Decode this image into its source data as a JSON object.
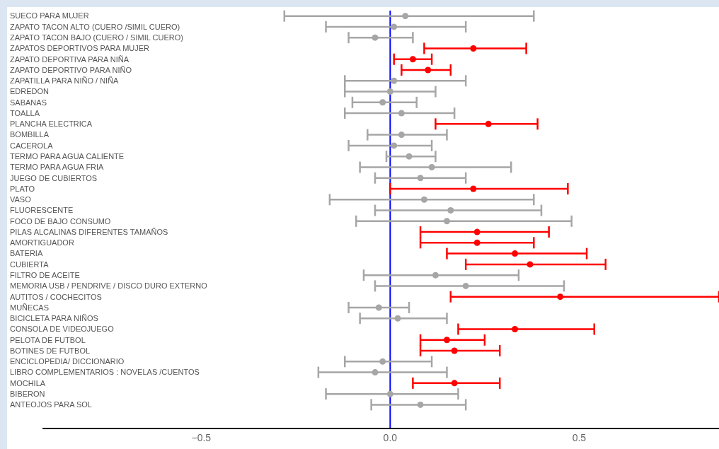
{
  "chart_data": {
    "type": "scatter",
    "orientation": "horizontal",
    "marker": "circle",
    "grid": false,
    "legend": false,
    "categories": [
      "SUECO PARA MUJER",
      "ZAPATO TACON ALTO (CUERO /SIMIL CUERO)",
      "ZAPATO TACON BAJO (CUERO / SIMIL CUERO)",
      "ZAPATOS DEPORTIVOS PARA MUJER",
      "ZAPATO DEPORTIVA PARA NIÑA",
      "ZAPATO DEPORTIVO PARA NIÑO",
      "ZAPATILLA PARA NIÑO / NIÑA",
      "EDREDON",
      "SABANAS",
      "TOALLA",
      "PLANCHA ELECTRICA",
      "BOMBILLA",
      "CACEROLA",
      "TERMO PARA AGUA CALIENTE",
      "TERMO PARA AGUA FRIA",
      "JUEGO DE CUBIERTOS",
      "PLATO",
      "VASO",
      "FLUORESCENTE",
      "FOCO DE BAJO CONSUMO",
      "PILAS ALCALINAS DIFERENTES TAMAÑOS",
      "AMORTIGUADOR",
      "BATERIA",
      "CUBIERTA",
      "FILTRO DE ACEITE",
      "MEMORIA USB / PENDRIVE / DISCO DURO EXTERNO",
      "AUTITOS / COCHECITOS",
      "MUÑECAS",
      "BICICLETA PARA NIÑOS",
      "CONSOLA DE VIDEOJUEGO",
      "PELOTA DE FUTBOL",
      "BOTINES DE FUTBOL",
      "ENCICLOPEDIA/ DICCIONARIO",
      "LIBRO COMPLEMENTARIOS : NOVELAS /CUENTOS",
      "MOCHILA",
      "BIBERON",
      "ANTEOJOS PARA SOL"
    ],
    "series": [
      {
        "color": "#a6a6a6",
        "values": [
          0.04,
          0.01,
          -0.04,
          null,
          null,
          null,
          0.01,
          0.0,
          -0.02,
          0.03,
          null,
          0.03,
          0.01,
          0.05,
          0.11,
          0.08,
          null,
          0.09,
          0.16,
          0.15,
          null,
          null,
          null,
          null,
          0.12,
          0.2,
          null,
          -0.03,
          0.02,
          null,
          null,
          null,
          -0.02,
          -0.04,
          null,
          0.0,
          0.08
        ],
        "errors": [
          [
            -0.28,
            0.38
          ],
          [
            -0.17,
            0.2
          ],
          [
            -0.11,
            0.06
          ],
          null,
          null,
          null,
          [
            -0.12,
            0.2
          ],
          [
            -0.12,
            0.12
          ],
          [
            -0.1,
            0.07
          ],
          [
            -0.12,
            0.17
          ],
          null,
          [
            -0.06,
            0.15
          ],
          [
            -0.11,
            0.11
          ],
          [
            -0.01,
            0.12
          ],
          [
            -0.08,
            0.32
          ],
          [
            -0.04,
            0.2
          ],
          null,
          [
            -0.16,
            0.38
          ],
          [
            -0.04,
            0.4
          ],
          [
            -0.09,
            0.48
          ],
          null,
          null,
          null,
          null,
          [
            -0.07,
            0.34
          ],
          [
            -0.04,
            0.46
          ],
          null,
          [
            -0.11,
            0.05
          ],
          [
            -0.08,
            0.15
          ],
          null,
          null,
          null,
          [
            -0.12,
            0.11
          ],
          [
            -0.19,
            0.15
          ],
          null,
          [
            -0.17,
            0.18
          ],
          [
            -0.05,
            0.2
          ]
        ]
      },
      {
        "color": "#ff0000",
        "values": [
          null,
          null,
          null,
          0.22,
          0.06,
          0.1,
          null,
          null,
          null,
          null,
          0.26,
          null,
          null,
          null,
          null,
          null,
          0.22,
          null,
          null,
          null,
          0.23,
          0.23,
          0.33,
          0.37,
          null,
          null,
          0.45,
          null,
          null,
          0.33,
          0.15,
          0.17,
          null,
          null,
          0.17,
          null,
          null
        ],
        "errors": [
          null,
          null,
          null,
          [
            0.09,
            0.36
          ],
          [
            0.01,
            0.11
          ],
          [
            0.03,
            0.16
          ],
          null,
          null,
          null,
          null,
          [
            0.12,
            0.39
          ],
          null,
          null,
          null,
          null,
          null,
          [
            0.0,
            0.47
          ],
          null,
          null,
          null,
          [
            0.08,
            0.42
          ],
          [
            0.08,
            0.38
          ],
          [
            0.15,
            0.52
          ],
          [
            0.2,
            0.57
          ],
          null,
          null,
          [
            0.16,
            0.87
          ],
          null,
          null,
          [
            0.18,
            0.54
          ],
          [
            0.08,
            0.25
          ],
          [
            0.08,
            0.29
          ],
          null,
          null,
          [
            0.06,
            0.29
          ],
          null,
          null
        ]
      }
    ],
    "xlim": [
      -0.92,
      0.87
    ],
    "xticks": [
      {
        "value": -0.5,
        "label": "−0.5"
      },
      {
        "value": 0,
        "label": "0.0"
      },
      {
        "value": 0.5,
        "label": "0.5"
      }
    ],
    "ref_lines": [
      {
        "axis": "x",
        "value": 0,
        "color": "#0000ff"
      }
    ]
  }
}
